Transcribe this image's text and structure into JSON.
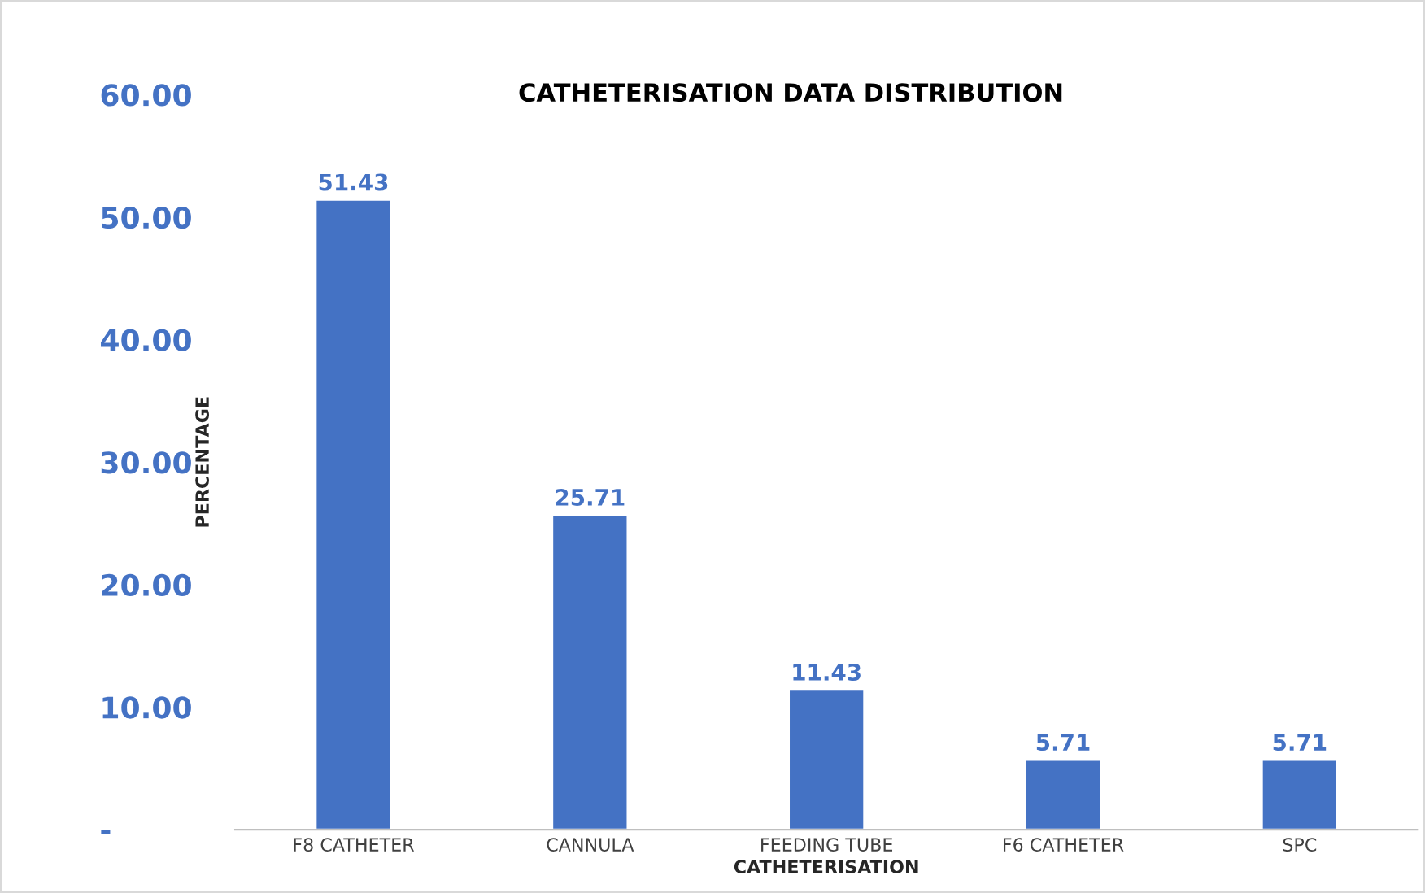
{
  "chart_data": {
    "type": "bar",
    "title": "CATHETERISATION DATA DISTRIBUTION",
    "xlabel": "CATHETERISATION",
    "ylabel": "PERCENTAGE",
    "categories": [
      "F8 CATHETER",
      "CANNULA",
      "FEEDING TUBE",
      "F6 CATHETER",
      "SPC"
    ],
    "values": [
      51.43,
      25.71,
      11.43,
      5.71,
      5.71
    ],
    "color": "#4472c4",
    "ylim": [
      0,
      60
    ],
    "yticks": [
      {
        "value": 0,
        "label": "-"
      },
      {
        "value": 10,
        "label": "10.00"
      },
      {
        "value": 20,
        "label": "20.00"
      },
      {
        "value": 30,
        "label": "30.00"
      },
      {
        "value": 40,
        "label": "40.00"
      },
      {
        "value": 50,
        "label": "50.00"
      },
      {
        "value": 60,
        "label": "60.00"
      }
    ],
    "data_labels": true,
    "grid": false,
    "legend": false
  }
}
